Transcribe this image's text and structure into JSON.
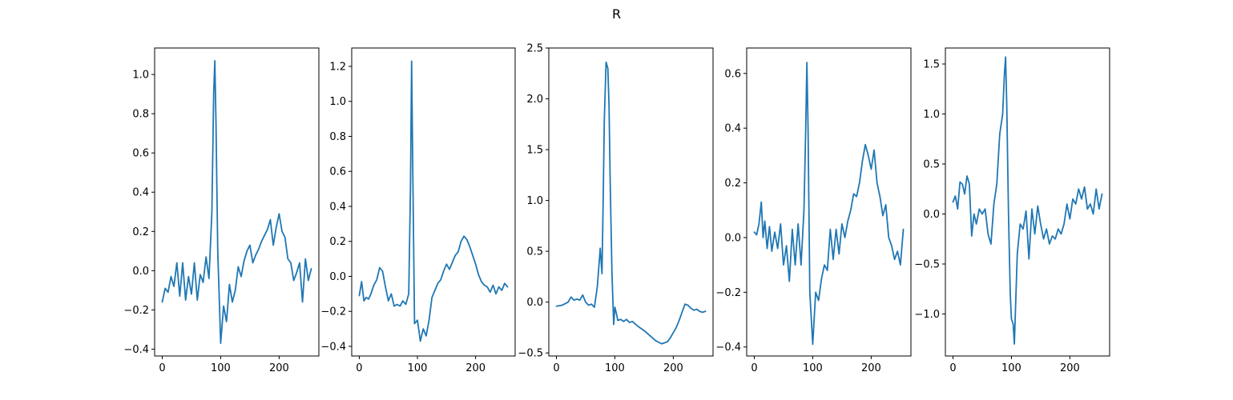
{
  "figure": {
    "title": "R"
  },
  "chart_data": [
    {
      "type": "line",
      "title": "",
      "xlabel": "",
      "ylabel": "",
      "grid": false,
      "xlim": [
        -13,
        268
      ],
      "ylim": [
        -0.435,
        1.135
      ],
      "xticks": [
        0,
        100,
        200
      ],
      "xtick_labels": [
        "0",
        "100",
        "200"
      ],
      "yticks": [
        -0.4,
        -0.2,
        0.0,
        0.2,
        0.4,
        0.6,
        0.8,
        1.0
      ],
      "ytick_labels": [
        "−0.4",
        "−0.2",
        "0.0",
        "0.2",
        "0.4",
        "0.6",
        "0.8",
        "1.0"
      ],
      "series": [
        {
          "color": "#1f77b4",
          "x": [
            0,
            5,
            10,
            15,
            20,
            25,
            30,
            35,
            40,
            45,
            50,
            55,
            60,
            65,
            70,
            75,
            80,
            85,
            88,
            90,
            92,
            95,
            100,
            105,
            110,
            115,
            120,
            125,
            130,
            135,
            140,
            145,
            150,
            155,
            160,
            165,
            170,
            175,
            180,
            185,
            190,
            195,
            200,
            205,
            210,
            215,
            220,
            225,
            230,
            235,
            240,
            245,
            250,
            255
          ],
          "y": [
            -0.16,
            -0.09,
            -0.11,
            -0.03,
            -0.08,
            0.04,
            -0.13,
            0.04,
            -0.15,
            -0.03,
            -0.12,
            0.04,
            -0.15,
            -0.02,
            -0.06,
            0.07,
            -0.04,
            0.3,
            0.9,
            1.07,
            0.75,
            0.1,
            -0.37,
            -0.18,
            -0.26,
            -0.07,
            -0.16,
            -0.1,
            0.02,
            -0.03,
            0.05,
            0.1,
            0.13,
            0.04,
            0.08,
            0.11,
            0.15,
            0.18,
            0.21,
            0.26,
            0.13,
            0.22,
            0.29,
            0.2,
            0.17,
            0.06,
            0.04,
            -0.05,
            -0.01,
            0.04,
            -0.16,
            0.06,
            -0.05,
            0.01
          ]
        }
      ]
    },
    {
      "type": "line",
      "title": "",
      "xlabel": "",
      "ylabel": "",
      "grid": false,
      "xlim": [
        -13,
        268
      ],
      "ylim": [
        -0.455,
        1.305
      ],
      "xticks": [
        0,
        100,
        200
      ],
      "xtick_labels": [
        "0",
        "100",
        "200"
      ],
      "yticks": [
        -0.4,
        -0.2,
        0.0,
        0.2,
        0.4,
        0.6,
        0.8,
        1.0,
        1.2
      ],
      "ytick_labels": [
        "−0.4",
        "−0.2",
        "0.0",
        "0.2",
        "0.4",
        "0.6",
        "0.8",
        "1.0",
        "1.2"
      ],
      "series": [
        {
          "color": "#1f77b4",
          "x": [
            0,
            4,
            8,
            12,
            16,
            20,
            25,
            30,
            35,
            40,
            45,
            50,
            55,
            60,
            65,
            70,
            75,
            80,
            85,
            88,
            90,
            92,
            95,
            100,
            105,
            110,
            115,
            120,
            125,
            130,
            135,
            140,
            145,
            150,
            155,
            160,
            165,
            170,
            175,
            180,
            185,
            190,
            195,
            200,
            205,
            210,
            215,
            220,
            225,
            230,
            235,
            240,
            245,
            250,
            255
          ],
          "y": [
            -0.11,
            -0.03,
            -0.14,
            -0.12,
            -0.13,
            -0.1,
            -0.05,
            -0.02,
            0.05,
            0.03,
            -0.06,
            -0.14,
            -0.1,
            -0.17,
            -0.16,
            -0.17,
            -0.14,
            -0.16,
            -0.1,
            0.5,
            1.23,
            0.6,
            -0.27,
            -0.25,
            -0.37,
            -0.3,
            -0.34,
            -0.25,
            -0.12,
            -0.08,
            -0.04,
            -0.02,
            0.03,
            0.07,
            0.04,
            0.08,
            0.12,
            0.14,
            0.2,
            0.23,
            0.21,
            0.17,
            0.12,
            0.07,
            0.01,
            -0.03,
            -0.05,
            -0.06,
            -0.09,
            -0.05,
            -0.1,
            -0.06,
            -0.08,
            -0.04,
            -0.06
          ]
        }
      ]
    },
    {
      "type": "line",
      "title": "",
      "xlabel": "",
      "ylabel": "",
      "grid": false,
      "xlim": [
        -13,
        268
      ],
      "ylim": [
        -0.53,
        2.5
      ],
      "xticks": [
        0,
        100,
        200
      ],
      "xtick_labels": [
        "0",
        "100",
        "200"
      ],
      "yticks": [
        -0.5,
        0.0,
        0.5,
        1.0,
        1.5,
        2.0,
        2.5
      ],
      "ytick_labels": [
        "−0.5",
        "0.0",
        "0.5",
        "1.0",
        "1.5",
        "2.0",
        "2.5"
      ],
      "series": [
        {
          "color": "#1f77b4",
          "x": [
            0,
            10,
            20,
            25,
            30,
            35,
            40,
            45,
            50,
            55,
            60,
            65,
            70,
            75,
            78,
            80,
            82,
            85,
            88,
            90,
            92,
            95,
            98,
            100,
            103,
            105,
            110,
            115,
            120,
            125,
            130,
            140,
            150,
            160,
            170,
            180,
            185,
            190,
            195,
            200,
            205,
            210,
            215,
            220,
            225,
            230,
            235,
            240,
            245,
            250,
            255
          ],
          "y": [
            -0.04,
            -0.03,
            0.0,
            0.05,
            0.02,
            0.03,
            0.02,
            0.07,
            0.0,
            -0.03,
            -0.02,
            -0.05,
            0.15,
            0.53,
            0.28,
            1.0,
            1.8,
            2.36,
            2.3,
            1.95,
            1.2,
            0.3,
            -0.22,
            -0.05,
            -0.12,
            -0.18,
            -0.17,
            -0.19,
            -0.17,
            -0.2,
            -0.19,
            -0.24,
            -0.28,
            -0.33,
            -0.38,
            -0.41,
            -0.4,
            -0.39,
            -0.35,
            -0.3,
            -0.25,
            -0.18,
            -0.1,
            -0.02,
            -0.03,
            -0.06,
            -0.08,
            -0.07,
            -0.09,
            -0.1,
            -0.09
          ]
        }
      ]
    },
    {
      "type": "line",
      "title": "",
      "xlabel": "",
      "ylabel": "",
      "grid": false,
      "xlim": [
        -13,
        268
      ],
      "ylim": [
        -0.433,
        0.693
      ],
      "xticks": [
        0,
        100,
        200
      ],
      "xtick_labels": [
        "0",
        "100",
        "200"
      ],
      "yticks": [
        -0.4,
        -0.2,
        0.0,
        0.2,
        0.4,
        0.6
      ],
      "ytick_labels": [
        "−0.4",
        "−0.2",
        "0.0",
        "0.2",
        "0.4",
        "0.6"
      ],
      "series": [
        {
          "color": "#1f77b4",
          "x": [
            0,
            4,
            8,
            12,
            15,
            18,
            22,
            26,
            30,
            35,
            40,
            45,
            50,
            55,
            60,
            65,
            70,
            75,
            80,
            85,
            88,
            90,
            92,
            95,
            100,
            105,
            110,
            115,
            120,
            125,
            130,
            135,
            140,
            145,
            150,
            155,
            160,
            165,
            170,
            175,
            180,
            185,
            190,
            195,
            200,
            205,
            210,
            215,
            220,
            225,
            230,
            235,
            240,
            245,
            250,
            255
          ],
          "y": [
            0.02,
            0.01,
            0.05,
            0.13,
            0.0,
            0.06,
            -0.04,
            0.04,
            -0.05,
            0.02,
            -0.04,
            0.05,
            -0.1,
            -0.03,
            -0.16,
            0.03,
            -0.1,
            0.05,
            -0.1,
            0.1,
            0.4,
            0.64,
            0.4,
            -0.2,
            -0.39,
            -0.2,
            -0.23,
            -0.15,
            -0.1,
            -0.12,
            0.03,
            -0.08,
            0.03,
            -0.06,
            0.05,
            0.0,
            0.06,
            0.1,
            0.16,
            0.15,
            0.2,
            0.28,
            0.34,
            0.3,
            0.25,
            0.32,
            0.2,
            0.15,
            0.08,
            0.12,
            0.0,
            -0.03,
            -0.08,
            -0.05,
            -0.1,
            0.03
          ]
        }
      ]
    },
    {
      "type": "line",
      "title": "",
      "xlabel": "",
      "ylabel": "",
      "grid": false,
      "xlim": [
        -13,
        268
      ],
      "ylim": [
        -1.42,
        1.66
      ],
      "xticks": [
        0,
        100,
        200
      ],
      "xtick_labels": [
        "0",
        "100",
        "200"
      ],
      "yticks": [
        -1.0,
        -0.5,
        0.0,
        0.5,
        1.0,
        1.5
      ],
      "ytick_labels": [
        "−1.0",
        "−0.5",
        "0.0",
        "0.5",
        "1.0",
        "1.5"
      ],
      "series": [
        {
          "color": "#1f77b4",
          "x": [
            0,
            4,
            8,
            12,
            16,
            20,
            24,
            28,
            32,
            36,
            40,
            45,
            50,
            55,
            60,
            65,
            70,
            75,
            80,
            85,
            88,
            90,
            92,
            95,
            98,
            100,
            103,
            105,
            110,
            115,
            120,
            125,
            130,
            135,
            140,
            145,
            150,
            155,
            160,
            165,
            170,
            175,
            180,
            185,
            190,
            195,
            200,
            205,
            210,
            215,
            220,
            225,
            230,
            235,
            240,
            245,
            250,
            255
          ],
          "y": [
            0.12,
            0.18,
            0.05,
            0.32,
            0.3,
            0.2,
            0.38,
            0.3,
            -0.22,
            0.0,
            -0.1,
            0.05,
            0.0,
            0.05,
            -0.2,
            -0.3,
            0.1,
            0.3,
            0.8,
            1.0,
            1.4,
            1.57,
            1.1,
            0.0,
            -0.8,
            -1.05,
            -1.1,
            -1.3,
            -0.4,
            -0.1,
            -0.15,
            0.03,
            -0.45,
            0.05,
            -0.2,
            0.08,
            -0.1,
            -0.25,
            -0.15,
            -0.3,
            -0.22,
            -0.25,
            -0.15,
            -0.2,
            -0.1,
            0.1,
            -0.05,
            0.15,
            0.1,
            0.25,
            0.15,
            0.27,
            0.05,
            0.1,
            0.0,
            0.25,
            0.05,
            0.2
          ]
        }
      ]
    }
  ]
}
